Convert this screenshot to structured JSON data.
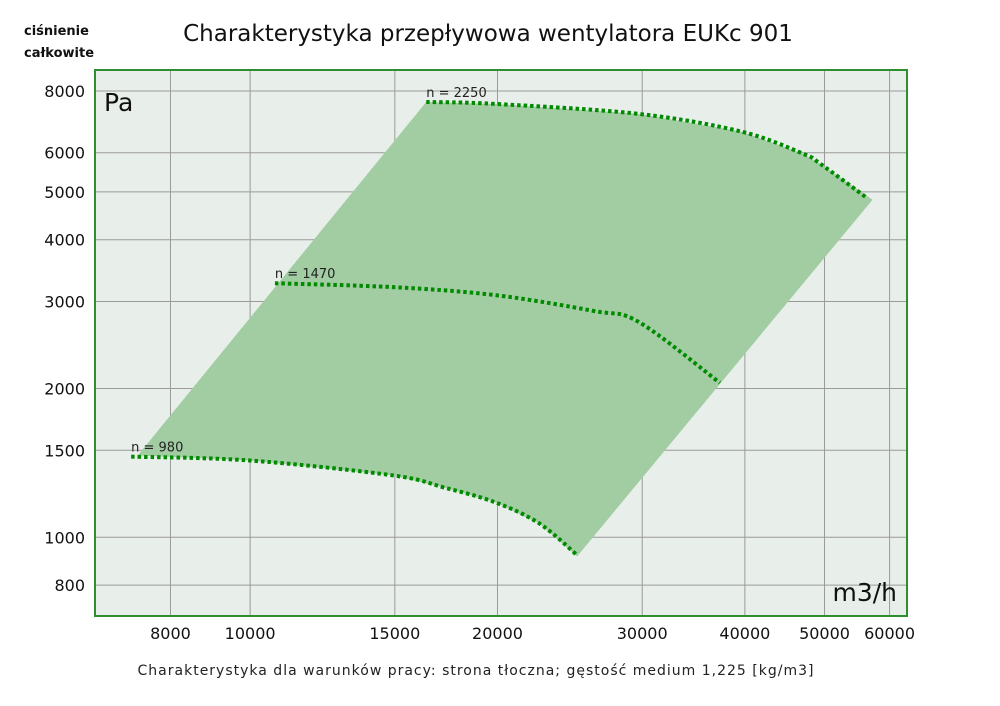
{
  "chart_data": {
    "type": "line",
    "title": "Charakterystyka przepływowa wentylatora EUKc 901",
    "ylabel_lines": [
      "ciśnienie",
      "całkowite"
    ],
    "y_unit": "Pa",
    "x_unit": "m3/h",
    "footnote": "Charakterystyka dla warunków pracy: strona tłoczna; gęstość medium 1,225 [kg/m3]",
    "x_scale": "log",
    "y_scale": "log",
    "xlim": [
      6475,
      63000
    ],
    "ylim": [
      693,
      8820
    ],
    "grid": true,
    "x_ticks": [
      8000,
      10000,
      15000,
      20000,
      30000,
      40000,
      50000,
      60000
    ],
    "x_tick_labels": [
      "8000",
      "10000",
      "15000",
      "20000",
      "30000",
      "40000",
      "50000",
      "60000"
    ],
    "y_ticks": [
      8000,
      6000,
      5000,
      4000,
      3000,
      2000,
      1500,
      1000,
      800
    ],
    "y_tick_labels": [
      "8000",
      "6000",
      "5000",
      "4000",
      "3000",
      "2000",
      "1500",
      "1000",
      "800"
    ],
    "series": [
      {
        "name": "n = 2250",
        "x": [
          16380,
          19900,
          29700,
          39600,
          47100,
          49400,
          56400
        ],
        "y": [
          7600,
          7530,
          7190,
          6620,
          5970,
          5700,
          4850
        ]
      },
      {
        "name": "n = 1470",
        "x": [
          10720,
          14930,
          19870,
          26200,
          29730,
          37300
        ],
        "y": [
          3266,
          3207,
          3090,
          2870,
          2725,
          2053
        ]
      },
      {
        "name": "n = 980",
        "x": [
          7165,
          10000,
          14930,
          17220,
          19870,
          22480,
          25000
        ],
        "y": [
          1456,
          1430,
          1334,
          1261,
          1177,
          1067,
          920
        ]
      }
    ],
    "operating_area": {
      "x": [
        7300,
        16380,
        19900,
        29700,
        39600,
        47100,
        49400,
        57200,
        25000,
        22480,
        19870,
        17220,
        14930,
        10000
      ],
      "y": [
        1465,
        7600,
        7530,
        7190,
        6620,
        5970,
        5700,
        4820,
        915,
        1067,
        1177,
        1261,
        1334,
        1430
      ]
    },
    "colors": {
      "curve": "#008a00",
      "area": "#a2cda2",
      "background": "#e8eeea",
      "border": "#2f8f2f",
      "grid": "#9a9a9a"
    }
  }
}
